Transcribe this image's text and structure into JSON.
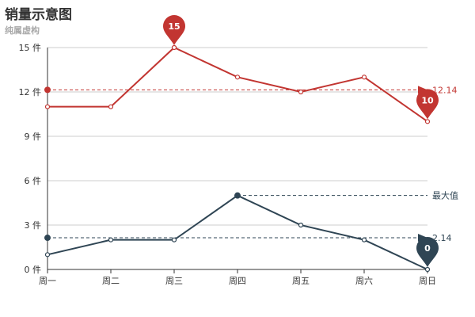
{
  "chart_data": {
    "type": "line",
    "title": "销量示意图",
    "subtitle": "纯属虚构",
    "categories": [
      "周一",
      "周二",
      "周三",
      "周四",
      "周五",
      "周六",
      "周日"
    ],
    "ylim": [
      0,
      15
    ],
    "yticks": [
      0,
      3,
      6,
      9,
      12,
      15
    ],
    "y_unit": "件",
    "grid": "horizontal",
    "series": [
      {
        "color": "#c23531",
        "values": [
          11,
          11,
          15,
          13,
          12,
          13,
          10
        ],
        "mark_points": [
          {
            "label": "15",
            "category": "周三",
            "value": 15
          },
          {
            "label": "10",
            "category": "周日",
            "value": 10
          }
        ],
        "average": {
          "value": 12.14,
          "label": "12.14"
        }
      },
      {
        "color": "#2f4554",
        "values": [
          1,
          2,
          2,
          5,
          3,
          2,
          0
        ],
        "mark_points": [
          {
            "label": "0",
            "category": "周日",
            "value": 0
          }
        ],
        "average": {
          "value": 2.14,
          "label": "2.14"
        },
        "max_line": {
          "category": "周四",
          "value": 5,
          "label": "最大值"
        }
      }
    ]
  }
}
